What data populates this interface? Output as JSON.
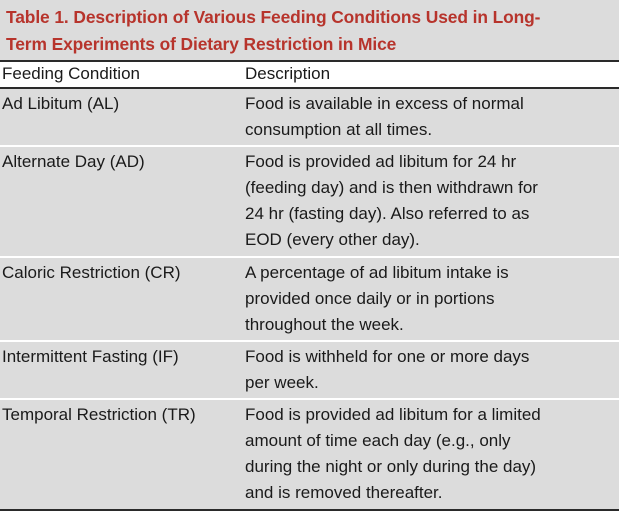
{
  "caption": {
    "line1": "Table 1.  Description of Various Feeding Conditions Used in Long-",
    "line2": "Term Experiments of Dietary Restriction in Mice",
    "color": "#b7342c"
  },
  "columns": {
    "condition": "Feeding Condition",
    "description": "Description"
  },
  "rows": [
    {
      "condition": "Ad Libitum (AL)",
      "description_lines": [
        "Food is available in excess of normal",
        "consumption at all times."
      ]
    },
    {
      "condition": "Alternate Day (AD)",
      "description_lines": [
        "Food is provided ad libitum for 24 hr",
        "(feeding day) and is then withdrawn for",
        "24 hr (fasting day). Also referred to as",
        "EOD (every other day)."
      ]
    },
    {
      "condition": "Caloric Restriction (CR)",
      "description_lines": [
        "A percentage of ad libitum intake is",
        "provided once daily or in portions",
        "throughout the week."
      ]
    },
    {
      "condition": "Intermittent Fasting (IF)",
      "description_lines": [
        "Food is withheld for one or more days",
        "per week."
      ]
    },
    {
      "condition": "Temporal Restriction (TR)",
      "description_lines": [
        "Food is provided ad libitum for a limited",
        "amount of time each day (e.g., only",
        "during the night or only during the day)",
        "and is removed thereafter."
      ]
    }
  ]
}
